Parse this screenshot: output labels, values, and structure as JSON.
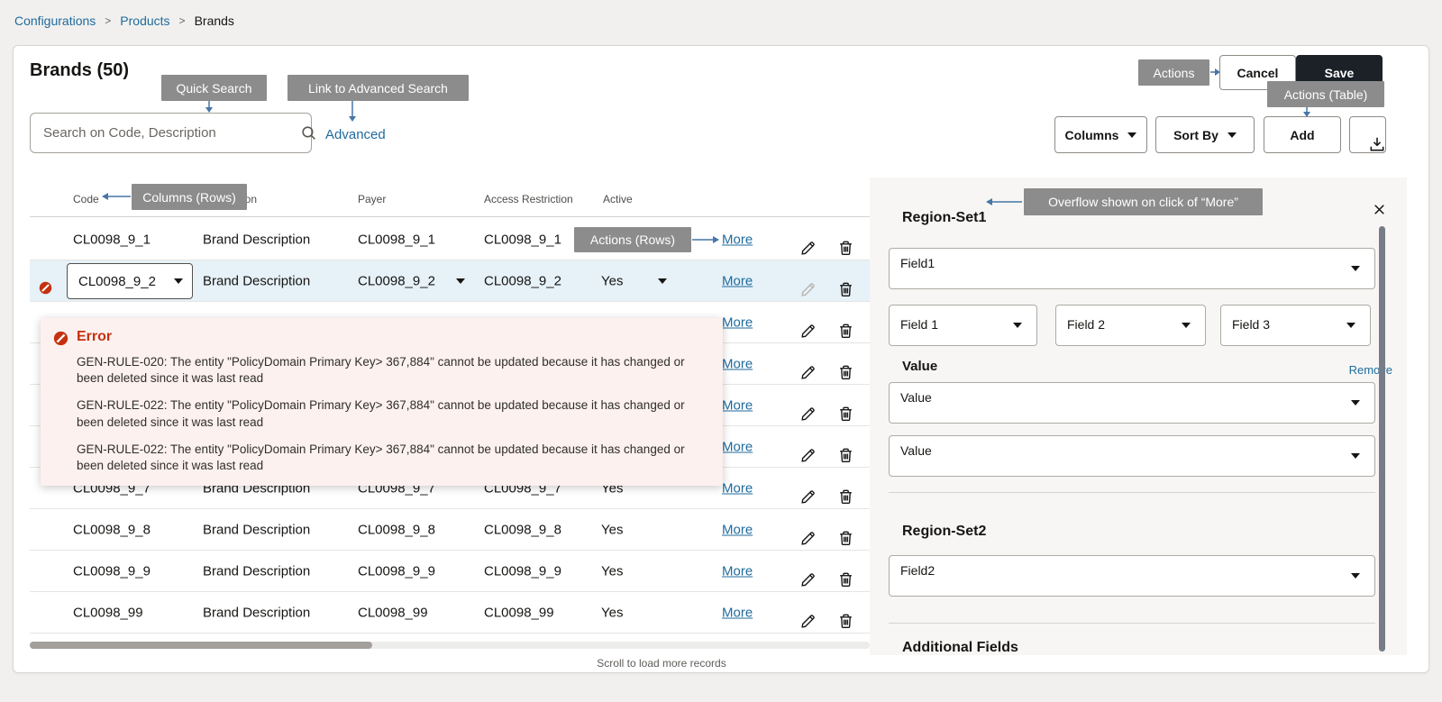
{
  "breadcrumb": {
    "separator": ">",
    "items": [
      {
        "label": "Configurations"
      },
      {
        "label": "Products"
      },
      {
        "label": "Brands"
      }
    ]
  },
  "page": {
    "title": "Brands (50)",
    "footer_hint": "Scroll to load more records"
  },
  "actions": {
    "cancel": "Cancel",
    "save": "Save",
    "columns": "Columns",
    "sort_by": "Sort By",
    "add": "Add"
  },
  "toolbar": {
    "search_placeholder": "Search on Code, Description",
    "advanced": "Advanced"
  },
  "annotations": {
    "quick_search": "Quick Search",
    "link_to_advanced_search": "Link to Advanced Search",
    "actions": "Actions",
    "actions_table": "Actions (Table)",
    "columns_rows": "Columns (Rows)",
    "actions_rows": "Actions (Rows)",
    "overflow_more": "Overflow shown on click of “More”"
  },
  "table": {
    "columns": [
      "Code",
      "Description",
      "Payer",
      "Access Restriction",
      "Active"
    ],
    "more_label": "More",
    "rows": [
      {
        "code": "CL0098_9_1",
        "description": "Brand Description",
        "payer": "CL0098_9_1",
        "access": "CL0098_9_1",
        "active": "",
        "state": "normal"
      },
      {
        "code": "CL0098_9_2",
        "description": "Brand Description",
        "payer": "CL0098_9_2",
        "access": "CL0098_9_2",
        "active": "Yes",
        "state": "selected"
      },
      {
        "code": "",
        "description": "",
        "payer": "",
        "access": "",
        "active": "",
        "state": "covered"
      },
      {
        "code": "",
        "description": "",
        "payer": "",
        "access": "",
        "active": "",
        "state": "covered"
      },
      {
        "code": "",
        "description": "",
        "payer": "",
        "access": "",
        "active": "",
        "state": "covered"
      },
      {
        "code": "",
        "description": "",
        "payer": "",
        "access": "",
        "active": "",
        "state": "covered"
      },
      {
        "code": "CL0098_9_7",
        "description": "Brand Description",
        "payer": "CL0098_9_7",
        "access": "CL0098_9_7",
        "active": "Yes",
        "state": "normal"
      },
      {
        "code": "CL0098_9_8",
        "description": "Brand Description",
        "payer": "CL0098_9_8",
        "access": "CL0098_9_8",
        "active": "Yes",
        "state": "normal"
      },
      {
        "code": "CL0098_9_9",
        "description": "Brand Description",
        "payer": "CL0098_9_9",
        "access": "CL0098_9_9",
        "active": "Yes",
        "state": "normal"
      },
      {
        "code": "CL0098_99",
        "description": "Brand Description",
        "payer": "CL0098_99",
        "access": "CL0098_99",
        "active": "Yes",
        "state": "normal"
      }
    ]
  },
  "error_popup": {
    "title": "Error",
    "messages": [
      "GEN-RULE-020: The entity \"PolicyDomain Primary Key> 367,884\" cannot be updated because it has changed or been deleted since it was last read",
      "GEN-RULE-022: The entity \"PolicyDomain Primary Key> 367,884\" cannot be updated because it has changed or been deleted since it was last read",
      "GEN-RULE-022: The entity \"PolicyDomain Primary Key> 367,884\" cannot be updated because it has changed or been deleted since it was last read"
    ]
  },
  "panel": {
    "region_set1": {
      "title": "Region-Set1",
      "field_dropdown": "Field1",
      "sub_fields": [
        "Field 1",
        "Field 2",
        "Field 3"
      ],
      "value_title": "Value",
      "remove": "Remove",
      "values": [
        "Value",
        "Value"
      ]
    },
    "region_set2": {
      "title": "Region-Set2",
      "field_dropdown": "Field2"
    },
    "additional_fields_title": "Additional Fields"
  },
  "colors": {
    "link": "#1f6b9d",
    "annotation_gray": "#8c8c8c",
    "error_red": "#c5310f",
    "save_button_bg": "#1b2127",
    "selected_row_bg": "#e6f1f8",
    "arrow_blue": "#4677a5"
  }
}
